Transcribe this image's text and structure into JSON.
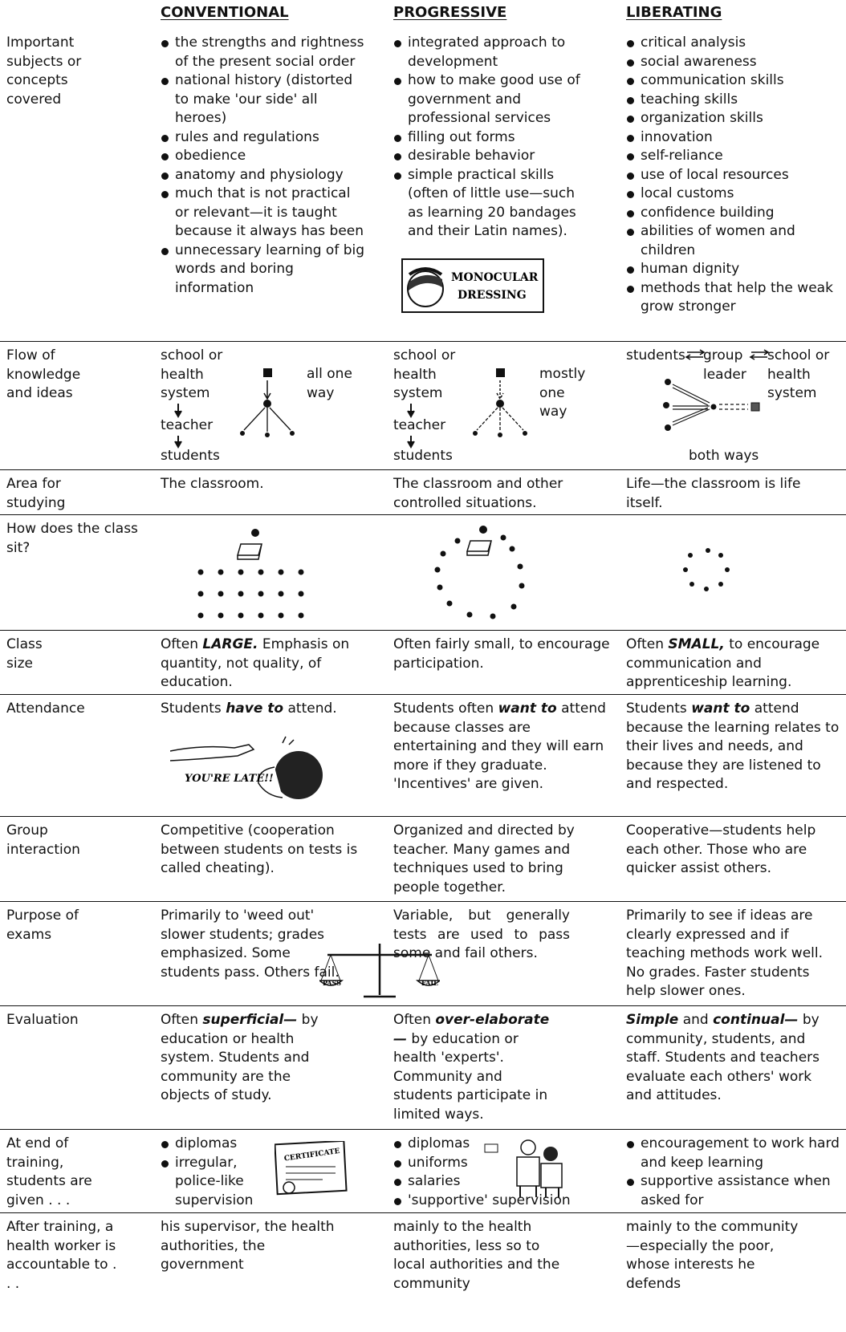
{
  "header": {
    "columns": [
      "CONVENTIONAL",
      "PROGRESSIVE",
      "LIBERATING"
    ]
  },
  "rows": [
    {
      "label": "Important subjects or concepts covered",
      "cells": [
        {
          "items": [
            "the strengths and rightness of the present social order",
            "national history (distorted to make 'our side' all heroes)",
            "rules and regulations",
            "obedience",
            "anatomy and physiology",
            "much that is not practical or relevant—it is taught because it always has been",
            "unnecessary learning of big words and boring information"
          ]
        },
        {
          "items": [
            "integrated approach to development",
            "how to make good use of government and professional services",
            "filling out forms",
            "desirable behavior",
            "simple practical skills (often of little use—such as learning 20 bandages and their Latin names)."
          ],
          "illustration": [
            "MONOCULAR",
            "DRESSING"
          ]
        },
        {
          "items": [
            "critical analysis",
            "social awareness",
            "communication skills",
            "teaching skills",
            "organization skills",
            "innovation",
            "self-reliance",
            "use of local resources",
            "local customs",
            "confidence building",
            "abilities of women and children",
            "human dignity",
            "methods that help the weak grow stronger"
          ]
        }
      ]
    },
    {
      "label": "Flow of knowledge and ideas",
      "cells": [
        {
          "steps": [
            "school or health system",
            "teacher",
            "students"
          ],
          "note": "all one way"
        },
        {
          "steps": [
            "school or health system",
            "teacher",
            "students"
          ],
          "note": "mostly one way"
        },
        {
          "nodes": [
            "students",
            "group leader",
            "school or health system"
          ],
          "note": "both ways"
        }
      ]
    },
    {
      "label": "Area for studying",
      "cells": [
        {
          "text": "The classroom."
        },
        {
          "text": "The classroom and other controlled situations."
        },
        {
          "text": "Life—the classroom is life itself."
        }
      ]
    },
    {
      "label": "How does the class sit?"
    },
    {
      "label": "Class size",
      "cells": [
        {
          "parts": [
            "Often ",
            "LARGE.",
            " Emphasis on quantity, not quality, of education."
          ]
        },
        {
          "text": "Often fairly small, to encourage participation."
        },
        {
          "parts": [
            "Often ",
            "SMALL,",
            " to encourage communication and apprenticeship learning."
          ]
        }
      ]
    },
    {
      "label": "Attendance",
      "cells": [
        {
          "parts": [
            "Students ",
            "have to",
            " attend."
          ],
          "illustration": "YOU'RE LATE!!"
        },
        {
          "parts": [
            "Students often ",
            "want to",
            " attend because classes are entertaining and they will earn more if they graduate. 'Incentives' are given."
          ]
        },
        {
          "parts": [
            "Students ",
            "want to",
            " attend because the learning relates to their lives and needs, and because they are listened to and respected."
          ]
        }
      ]
    },
    {
      "label": "Group interaction",
      "cells": [
        {
          "text": "Competitive (cooperation between students on tests is called cheating)."
        },
        {
          "text": "Organized and directed by teacher. Many games and techniques used to bring people together."
        },
        {
          "text": "Cooperative—students help each other. Those who are quicker assist others."
        }
      ]
    },
    {
      "label": "Purpose of exams",
      "cells": [
        {
          "text": "Primarily to 'weed out' slower students; grades emphasized. Some students pass. Others fail.",
          "illustration": [
            "PASS",
            "FAIL"
          ]
        },
        {
          "text": "Variable, but generally tests are used to pass some and fail others."
        },
        {
          "text": "Primarily to see if ideas are clearly expressed and if teaching methods work well. No grades. Faster students help slower ones."
        }
      ]
    },
    {
      "label": "Evaluation",
      "cells": [
        {
          "parts": [
            "Often ",
            "superficial—",
            " by education or health system. Students and community are the objects of study."
          ]
        },
        {
          "parts": [
            "Often ",
            "over-elaborate—",
            " by education or health 'experts'. Community and students participate in limited ways."
          ]
        },
        {
          "parts": [
            "Simple",
            " and ",
            "continual—",
            " by community, students, and staff. Students and teachers evaluate each others' work and attitudes."
          ]
        }
      ]
    },
    {
      "label": "At end of training, students are given . . .",
      "cells": [
        {
          "items": [
            "diplomas",
            "irregular, police-like supervision"
          ],
          "illustration": "CERTIFICATE"
        },
        {
          "items": [
            "diplomas",
            "uniforms",
            "salaries",
            "'supportive' supervision"
          ]
        },
        {
          "items": [
            "encouragement to work hard and keep learning",
            "supportive assistance when asked for"
          ]
        }
      ]
    },
    {
      "label": "After training, a health worker is accountable to . . .",
      "cells": [
        {
          "text": "his supervisor, the health authorities, the government"
        },
        {
          "text": "mainly to the health authorities, less so to local authorities and the community"
        },
        {
          "text": "mainly to the community—especially the poor, whose interests he defends"
        }
      ]
    }
  ]
}
